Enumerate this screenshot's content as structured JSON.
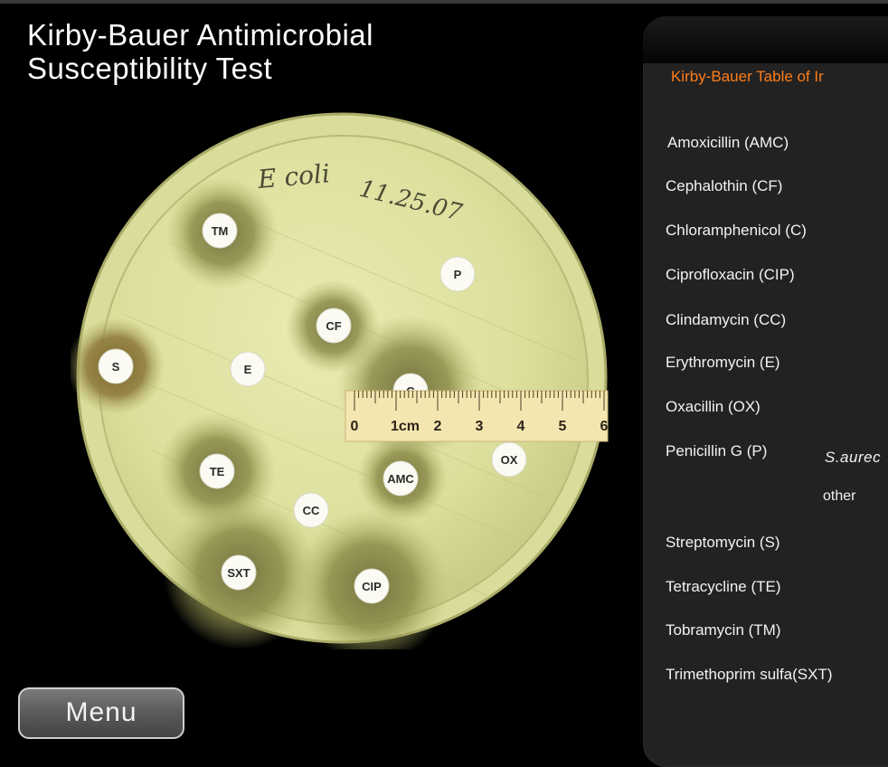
{
  "title": {
    "line1": "Kirby-Bauer Antimicrobial",
    "line2": "Susceptibility Test"
  },
  "plate": {
    "label_name": "E coli",
    "label_date": "11.25.07",
    "disks": [
      "TM",
      "P",
      "CF",
      "S",
      "E",
      "C",
      "TE",
      "AMC",
      "OX",
      "CC",
      "SXT",
      "CIP"
    ],
    "ruler": {
      "ticks": [
        "0",
        "1cm",
        "2",
        "3",
        "4",
        "5",
        "6"
      ]
    }
  },
  "menu": {
    "label": "Menu"
  },
  "panel": {
    "title": "Kirby-Bauer Table of Ir",
    "drugs": [
      "Amoxicillin (AMC)",
      "Cephalothin (CF)",
      "Chloramphenicol (C)",
      "Ciprofloxacin (CIP)",
      "Clindamycin (CC)",
      "Erythromycin (E)",
      "Oxacillin (OX)",
      "Penicillin G (P)",
      "Streptomycin (S)",
      "Tetracycline (TE)",
      "Tobramycin (TM)",
      "Trimethoprim sulfa(SXT)"
    ],
    "penicillin_sub": {
      "organism": "S.aurec",
      "other": "other"
    }
  }
}
